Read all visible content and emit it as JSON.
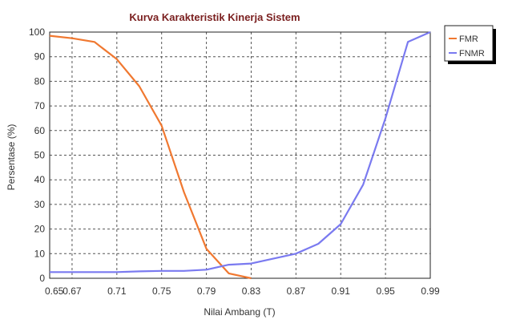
{
  "chart_data": {
    "type": "line",
    "title": "Kurva Karakteristik Kinerja Sistem",
    "xlabel": "Nilai Ambang (T)",
    "ylabel": "Persentase (%)",
    "xlim": [
      0.65,
      0.99
    ],
    "ylim": [
      0,
      100
    ],
    "x_ticks": [
      "0.65",
      "0.67",
      "0.71",
      "0.75",
      "0.79",
      "0.83",
      "0.87",
      "0.91",
      "0.95",
      "0.99"
    ],
    "y_ticks": [
      "0",
      "10",
      "20",
      "30",
      "40",
      "50",
      "60",
      "70",
      "80",
      "90",
      "100"
    ],
    "grid": true,
    "legend_position": "right",
    "series": [
      {
        "name": "FMR",
        "color": "#f07830",
        "x": [
          0.65,
          0.67,
          0.69,
          0.71,
          0.73,
          0.75,
          0.77,
          0.79,
          0.81,
          0.83
        ],
        "y": [
          98.5,
          97.5,
          96,
          89,
          78,
          62,
          35,
          12,
          2,
          0
        ]
      },
      {
        "name": "FNMR",
        "color": "#7a7af0",
        "x": [
          0.65,
          0.67,
          0.69,
          0.71,
          0.73,
          0.75,
          0.77,
          0.79,
          0.81,
          0.83,
          0.85,
          0.87,
          0.89,
          0.91,
          0.93,
          0.95,
          0.97,
          0.99
        ],
        "y": [
          2.5,
          2.5,
          2.5,
          2.5,
          2.8,
          3,
          3,
          3.5,
          5.5,
          6,
          8,
          10,
          14,
          22,
          38,
          65,
          96,
          100
        ]
      }
    ]
  }
}
